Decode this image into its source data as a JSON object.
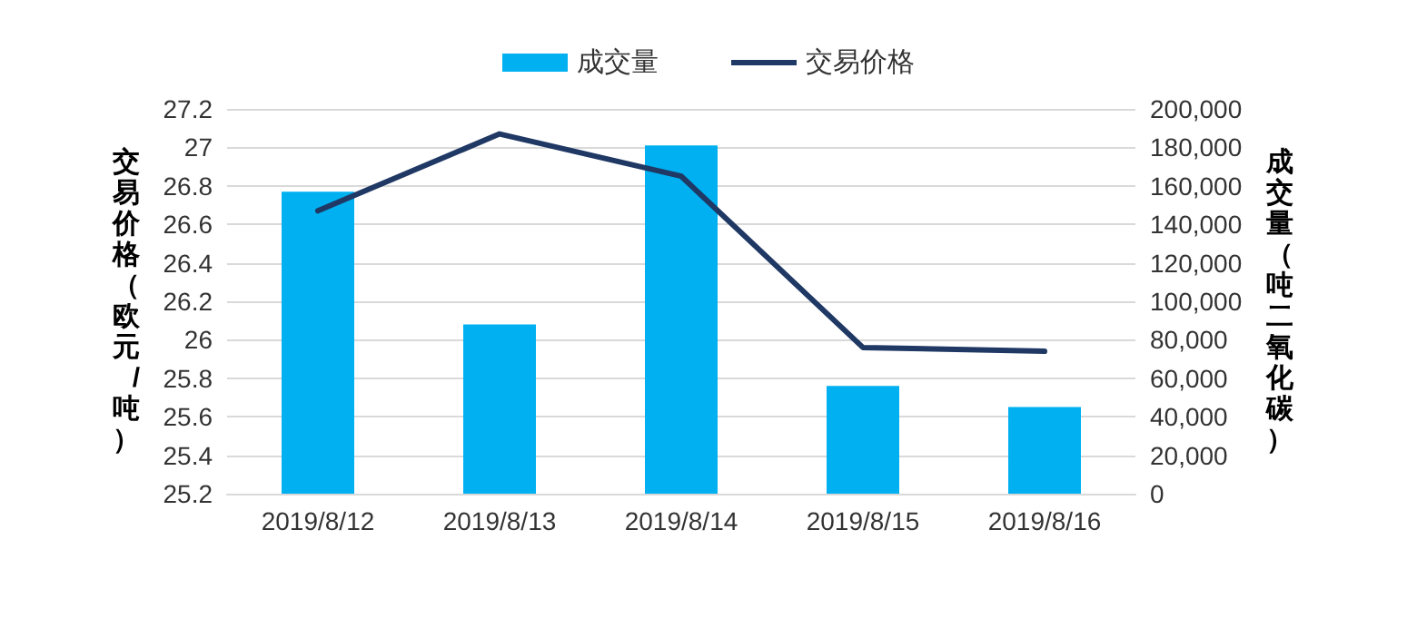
{
  "chart_data": {
    "type": "bar",
    "categories": [
      "2019/8/12",
      "2019/8/13",
      "2019/8/14",
      "2019/8/15",
      "2019/8/16"
    ],
    "series": [
      {
        "name": "成交量",
        "axis": "y2",
        "color": "#00b0f0",
        "values": [
          157000,
          88000,
          181000,
          56000,
          45000
        ]
      },
      {
        "name": "交易价格",
        "type": "line",
        "color": "#1f3864",
        "values": [
          26.67,
          27.07,
          26.85,
          25.96,
          25.94
        ]
      }
    ],
    "ylabel": "交易价格（欧元/吨）",
    "y2label": "成交量（吨二氧化碳）",
    "ylim": [
      25.2,
      27.2
    ],
    "yticks": [
      25.2,
      25.4,
      25.6,
      25.8,
      26,
      26.2,
      26.4,
      26.6,
      26.8,
      27,
      27.2
    ],
    "y2lim": [
      0,
      200000
    ],
    "y2ticks": [
      0,
      {
        "value": 20000,
        "label": "20,000"
      },
      {
        "value": 40000,
        "label": "40,000"
      },
      {
        "value": 60000,
        "label": "60,000"
      },
      {
        "value": 80000,
        "label": "80,000"
      },
      {
        "value": 100000,
        "label": "100,000"
      },
      {
        "value": 120000,
        "label": "120,000"
      },
      {
        "value": 140000,
        "label": "140,000"
      },
      {
        "value": 160000,
        "label": "160,000"
      },
      {
        "value": 180000,
        "label": "180,000"
      },
      {
        "value": 200000,
        "label": "200,000"
      }
    ],
    "grid": "y",
    "legend": "top",
    "marker": "none"
  }
}
